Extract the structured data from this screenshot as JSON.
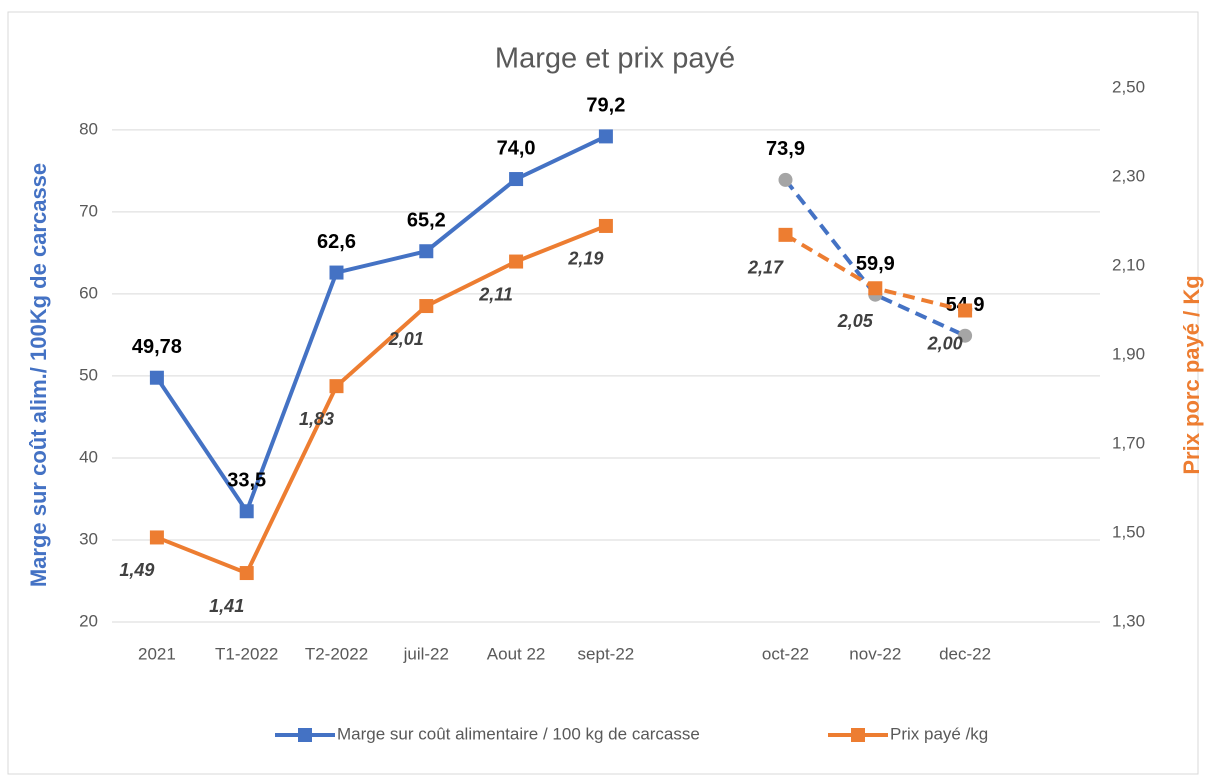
{
  "chart_data": {
    "type": "line",
    "title": "Marge et prix payé",
    "y_label": "Marge sur coût alim./ 100Kg de carcasse",
    "y2_label": "Prix porc payé / Kg",
    "categories": [
      "2021",
      "T1-2022",
      "T2-2022",
      "juil-22",
      "Aout 22",
      "sept-22",
      null,
      "oct-22",
      "nov-22",
      "dec-22"
    ],
    "dashed_from_index": 7,
    "series": [
      {
        "name": "Marge sur coût alimentaire / 100 kg de carcasse",
        "color": "#4472c4",
        "dashed_marker_color": "#a5a5a5",
        "values": [
          49.78,
          33.5,
          62.6,
          65.2,
          74.0,
          79.2,
          null,
          73.9,
          59.9,
          54.9
        ],
        "value_labels": [
          "49,78",
          "33,5",
          "62,6",
          "65,2",
          "74,0",
          "79,2",
          null,
          "73,9",
          "59,9",
          "54,9"
        ]
      },
      {
        "name": "Prix payé /kg",
        "color": "#ed7d31",
        "axis": "y2",
        "values": [
          1.49,
          1.41,
          1.83,
          2.01,
          2.11,
          2.19,
          null,
          2.17,
          2.05,
          2.0
        ],
        "value_labels": [
          "1,49",
          "1,41",
          "1,83",
          "2,01",
          "2,11",
          "2,19",
          null,
          "2,17",
          "2,05",
          "2,00"
        ]
      }
    ],
    "ylim": [
      20,
      85.1
    ],
    "yticks": [
      20,
      30,
      40,
      50,
      60,
      70,
      80
    ],
    "y2lim": [
      1.3,
      2.5
    ],
    "y2ticks": [
      {
        "value": 1.3,
        "label": "1,30"
      },
      {
        "value": 1.5,
        "label": "1,50"
      },
      {
        "value": 1.7,
        "label": "1,70"
      },
      {
        "value": 1.9,
        "label": "1,90"
      },
      {
        "value": 2.1,
        "label": "2,10"
      },
      {
        "value": 2.3,
        "label": "2,30"
      },
      {
        "value": 2.5,
        "label": "2,50"
      }
    ],
    "grid": true,
    "legend": "bottom"
  }
}
